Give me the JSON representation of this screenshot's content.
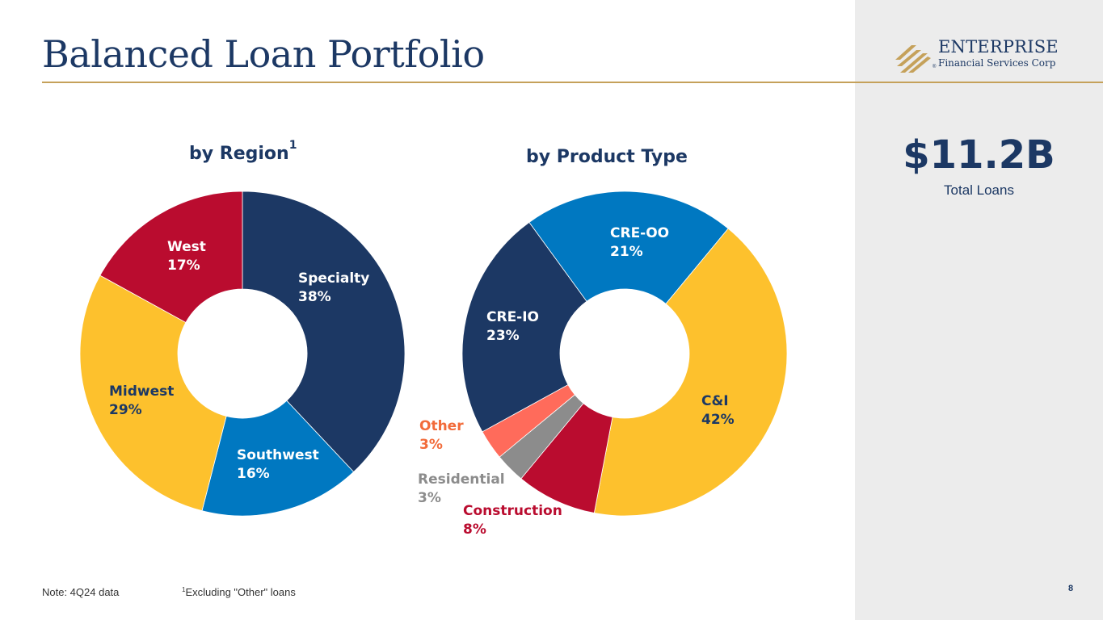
{
  "header": {
    "title": "Balanced Loan Portfolio"
  },
  "logo": {
    "name": "ENTERPRISE",
    "subtitle": "Financial Services Corp",
    "registered": "®",
    "accent_color": "#c5a15a"
  },
  "summary": {
    "value": "$11.2B",
    "label": "Total Loans"
  },
  "footer": {
    "note": "Note: 4Q24 data",
    "footnote_marker": "1",
    "footnote_text": "Excluding \"Other\" loans",
    "page_number": "8"
  },
  "chart_data": [
    {
      "type": "pie",
      "variant": "donut",
      "title": "by Region",
      "title_superscript": "1",
      "categories": [
        "Specialty",
        "Southwest",
        "Midwest",
        "West"
      ],
      "values": [
        38,
        16,
        29,
        17
      ],
      "labels": [
        "38%",
        "16%",
        "29%",
        "17%"
      ],
      "colors": [
        "#1c3864",
        "#0078c1",
        "#fdc12d",
        "#ba0c2f"
      ],
      "label_colors": [
        "#ffffff",
        "#ffffff",
        "#1c3864",
        "#ffffff"
      ],
      "start": "12 o'clock",
      "direction": "clockwise"
    },
    {
      "type": "pie",
      "variant": "donut",
      "title": "by Product Type",
      "categories": [
        "CRE-OO",
        "C&I",
        "Construction",
        "Residential",
        "Other",
        "CRE-IO"
      ],
      "values": [
        21,
        42,
        8,
        3,
        3,
        23
      ],
      "labels": [
        "21%",
        "42%",
        "8%",
        "3%",
        "3%",
        "23%"
      ],
      "colors": [
        "#0078c1",
        "#fdc12d",
        "#ba0c2f",
        "#8c8c8c",
        "#ff6b5b",
        "#1c3864"
      ],
      "label_colors": [
        "#ffffff",
        "#1c3864",
        "#ba0c2f",
        "#8c8c8c",
        "#f26b3a",
        "#ffffff"
      ],
      "start": "about 11 o'clock",
      "direction": "clockwise"
    }
  ]
}
